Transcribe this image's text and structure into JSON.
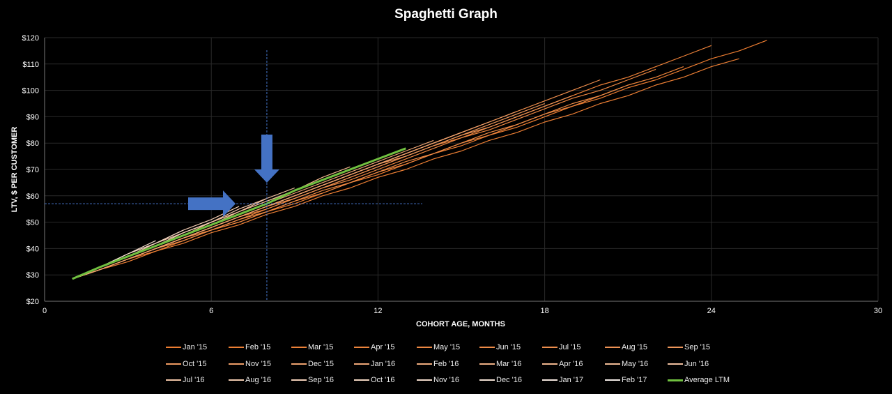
{
  "chart_data": {
    "type": "line",
    "title": "Spaghetti Graph",
    "xlabel": "COHORT AGE, MONTHS",
    "ylabel": "LTV, $ PER CUSTOMER",
    "xlim": [
      0,
      30
    ],
    "ylim": [
      20,
      120
    ],
    "x_ticks": [
      "0",
      "6",
      "12",
      "18",
      "24",
      "30"
    ],
    "y_ticks": [
      "$20",
      "$30",
      "$40",
      "$50",
      "$60",
      "$70",
      "$80",
      "$90",
      "$100",
      "$110",
      "$120"
    ],
    "grid": true,
    "legend_position": "bottom",
    "background": "#000000",
    "cohort_color_oldest": "#ed7d31",
    "cohort_color_newest": "#f2ebe6",
    "average_color": "#70c040",
    "annotation_color": "#4472c4",
    "series": [
      {
        "name": "Jan '15",
        "values": [
          28.5,
          32,
          36,
          39,
          43,
          47,
          50,
          54,
          57,
          61,
          65,
          68,
          72,
          76,
          79,
          83,
          86,
          90,
          94,
          97,
          101,
          104,
          108,
          112,
          115,
          119
        ]
      },
      {
        "name": "Feb '15",
        "values": [
          28.5,
          32,
          35,
          39,
          42,
          46,
          49,
          53,
          56,
          60,
          63,
          67,
          70,
          74,
          77,
          81,
          84,
          88,
          91,
          95,
          98,
          102,
          105,
          109,
          112
        ]
      },
      {
        "name": "Mar '15",
        "values": [
          28.5,
          32,
          36,
          40,
          44,
          48,
          52,
          55,
          59,
          63,
          67,
          71,
          75,
          79,
          82,
          86,
          90,
          94,
          98,
          102,
          105,
          109,
          113,
          117
        ]
      },
      {
        "name": "Apr '15",
        "values": [
          28.5,
          32,
          36,
          40,
          43,
          47,
          50,
          54,
          58,
          61,
          65,
          69,
          72,
          76,
          80,
          83,
          87,
          91,
          94,
          98,
          102,
          105,
          109
        ]
      },
      {
        "name": "May '15",
        "values": [
          28.5,
          32,
          36,
          40,
          44,
          47,
          51,
          55,
          59,
          63,
          66,
          70,
          74,
          78,
          82,
          85,
          89,
          93,
          97,
          100,
          104,
          108
        ]
      },
      {
        "name": "Jun '15",
        "values": [
          28.5,
          32,
          36,
          40,
          43,
          47,
          51,
          54,
          58,
          62,
          65,
          69,
          73,
          76,
          80,
          84,
          87,
          91,
          95,
          98,
          102
        ]
      },
      {
        "name": "Jul '15",
        "values": [
          28.5,
          32,
          36,
          40,
          44,
          48,
          52,
          56,
          60,
          64,
          68,
          72,
          76,
          80,
          84,
          88,
          92,
          96,
          100,
          104
        ]
      },
      {
        "name": "Aug '15",
        "values": [
          28.5,
          32,
          36,
          40,
          44,
          48,
          52,
          56,
          59,
          63,
          67,
          71,
          75,
          79,
          83,
          86,
          90,
          94,
          98
        ]
      },
      {
        "name": "Sep '15",
        "values": [
          28.5,
          32,
          36,
          40,
          44,
          48,
          52,
          56,
          60,
          64,
          68,
          72,
          75,
          79,
          83,
          87,
          91,
          95
        ]
      },
      {
        "name": "Oct '15",
        "values": [
          28.5,
          32,
          36,
          40,
          44,
          48,
          52,
          56,
          60,
          64,
          68,
          72,
          76,
          80,
          84,
          88,
          92
        ]
      },
      {
        "name": "Nov '15",
        "values": [
          28.5,
          32,
          36,
          40,
          44,
          48,
          52,
          56,
          60,
          64,
          68,
          72,
          76,
          80,
          84,
          88
        ]
      },
      {
        "name": "Dec '15",
        "values": [
          28.5,
          32,
          36,
          40,
          44,
          48,
          52,
          56,
          60,
          64,
          68,
          72,
          76,
          80,
          84
        ]
      },
      {
        "name": "Jan '16",
        "values": [
          28.5,
          33,
          37,
          41,
          45,
          49,
          53,
          57,
          61,
          65,
          69,
          73,
          77,
          81
        ]
      },
      {
        "name": "Feb '16",
        "values": [
          28.5,
          33,
          37,
          41,
          45,
          49,
          53,
          57,
          62,
          66,
          70,
          74,
          78
        ]
      },
      {
        "name": "Mar '16",
        "values": [
          28.5,
          33,
          37,
          41,
          45,
          49,
          53,
          57,
          62,
          66,
          70,
          74
        ]
      },
      {
        "name": "Apr '16",
        "values": [
          28.5,
          33,
          37,
          41,
          45,
          50,
          54,
          58,
          62,
          67,
          71
        ]
      },
      {
        "name": "May '16",
        "values": [
          28.5,
          33,
          37,
          41,
          45,
          49,
          54,
          58,
          62,
          66
        ]
      },
      {
        "name": "Jun '16",
        "values": [
          28.5,
          33,
          37,
          41,
          46,
          50,
          54,
          59,
          63
        ]
      },
      {
        "name": "Jul '16",
        "values": [
          28.5,
          33,
          37,
          42,
          46,
          50,
          55,
          59
        ]
      },
      {
        "name": "Aug '16",
        "values": [
          28.5,
          33,
          38,
          42,
          47,
          51,
          56
        ]
      },
      {
        "name": "Sep '16",
        "values": [
          28.5,
          33,
          37,
          41,
          46,
          50
        ]
      },
      {
        "name": "Oct '16",
        "values": [
          28.5,
          33,
          38,
          42,
          47
        ]
      },
      {
        "name": "Nov '16",
        "values": [
          28.5,
          33,
          38,
          43
        ]
      },
      {
        "name": "Dec '16",
        "values": [
          28.5,
          33,
          38
        ]
      },
      {
        "name": "Jan '17",
        "values": [
          28.5,
          33
        ]
      },
      {
        "name": "Feb '17",
        "values": [
          28.5
        ]
      },
      {
        "name": "Average LTM",
        "values": [
          28.5,
          33,
          37,
          41,
          45,
          49,
          53,
          57,
          62,
          66,
          70,
          74,
          78
        ],
        "is_average": true
      }
    ],
    "annotations": {
      "vertical_guide_month": 8,
      "horizontal_guide_value": 57,
      "arrows": [
        "down arrow at month 8",
        "right arrow at $57"
      ]
    }
  }
}
